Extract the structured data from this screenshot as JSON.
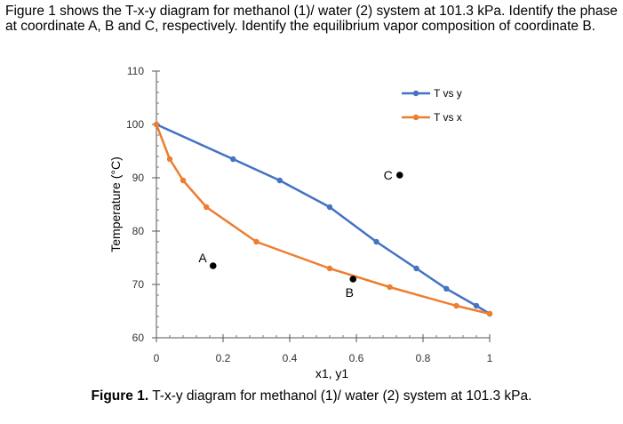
{
  "question": {
    "text": "Figure 1 shows the T-x-y diagram for methanol (1)/ water (2) system at 101.3 kPa. Identify the phase at coordinate A, B and C, respectively. Identify the equilibrium vapor composition of coordinate B."
  },
  "caption": {
    "label": "Figure 1.",
    "text": "T-x-y diagram for methanol (1)/ water (2) system at 101.3 kPa."
  },
  "chart_data": {
    "type": "line",
    "xlabel": "x1, y1",
    "ylabel": "Temperature (°C)",
    "xlim": [
      0,
      1
    ],
    "ylim": [
      60,
      110
    ],
    "xticks": [
      "0",
      "0.2",
      "0.4",
      "0.6",
      "0.8",
      "1"
    ],
    "yticks": [
      "60",
      "70",
      "80",
      "90",
      "100",
      "110"
    ],
    "grid": false,
    "legend": "top-right",
    "series": [
      {
        "name": "T vs y",
        "color": "#4472C4",
        "x": [
          0,
          0.23,
          0.37,
          0.52,
          0.66,
          0.78,
          0.87,
          0.96,
          1.0
        ],
        "y": [
          100,
          93.5,
          89.5,
          84.5,
          78,
          73,
          69.2,
          66,
          64.5
        ]
      },
      {
        "name": "T vs x",
        "color": "#ED7D31",
        "x": [
          0,
          0.04,
          0.08,
          0.15,
          0.3,
          0.52,
          0.7,
          0.9,
          1.0
        ],
        "y": [
          100,
          93.5,
          89.5,
          84.5,
          78,
          73,
          69.5,
          66,
          64.5
        ]
      }
    ],
    "annotations": [
      {
        "label": "A",
        "x": 0.17,
        "y": 73.5
      },
      {
        "label": "B",
        "x": 0.59,
        "y": 71
      },
      {
        "label": "C",
        "x": 0.73,
        "y": 90.5
      }
    ]
  }
}
